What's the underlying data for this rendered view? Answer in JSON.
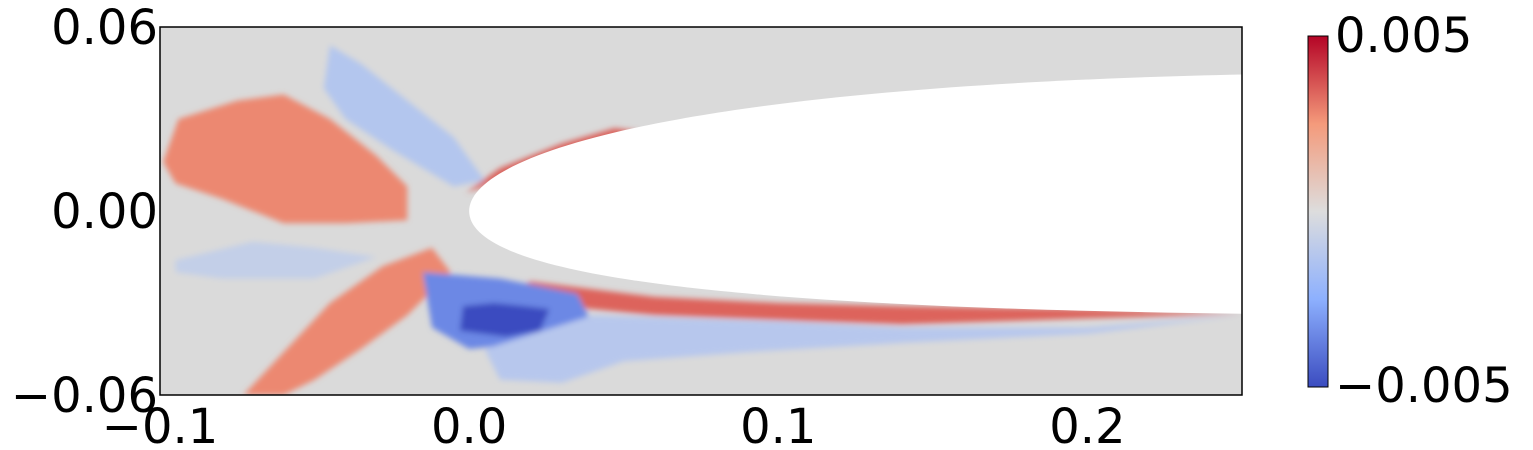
{
  "chart_data": {
    "type": "heatmap",
    "title": "",
    "xlabel": "",
    "ylabel": "",
    "xlim": [
      -0.1,
      0.25
    ],
    "ylim": [
      -0.06,
      0.06
    ],
    "xticks": [
      -0.1,
      0.0,
      0.1,
      0.2
    ],
    "xtick_labels": [
      "−0.1",
      "0.0",
      "0.1",
      "0.2"
    ],
    "yticks": [
      -0.06,
      0.0,
      0.06
    ],
    "ytick_labels": [
      "−0.06",
      "0.00",
      "0.06"
    ],
    "grid": false,
    "colormap": "coolwarm",
    "colorbar": {
      "range": [
        -0.005,
        0.005
      ],
      "tick_labels": [
        "0.005",
        "−0.005"
      ],
      "colors": [
        "#3b4cc0",
        "#8db0fe",
        "#dddddd",
        "#f49a7b",
        "#b40426"
      ]
    },
    "background_color": "#dadada",
    "airfoil": {
      "leading_edge": [
        0.0,
        0.0
      ],
      "trailing_edge_x": 0.25,
      "upper_y_at_trailing_edge": 0.0445,
      "lower_y_at_trailing_edge": -0.0335,
      "color": "#ffffff"
    },
    "regions": [
      {
        "label": "upstream-upper-lobe",
        "value": 0.0028,
        "points": [
          [
            -0.099,
            0.016
          ],
          [
            -0.094,
            0.03
          ],
          [
            -0.075,
            0.036
          ],
          [
            -0.06,
            0.038
          ],
          [
            -0.045,
            0.03
          ],
          [
            -0.03,
            0.018
          ],
          [
            -0.02,
            0.008
          ],
          [
            -0.02,
            -0.003
          ],
          [
            -0.04,
            -0.004
          ],
          [
            -0.06,
            -0.004
          ],
          [
            -0.08,
            0.004
          ],
          [
            -0.095,
            0.009
          ]
        ]
      },
      {
        "label": "upstream-lower-lobe",
        "value": 0.0028,
        "points": [
          [
            -0.073,
            -0.06
          ],
          [
            -0.06,
            -0.046
          ],
          [
            -0.045,
            -0.03
          ],
          [
            -0.028,
            -0.018
          ],
          [
            -0.012,
            -0.012
          ],
          [
            -0.006,
            -0.02
          ],
          [
            -0.02,
            -0.034
          ],
          [
            -0.035,
            -0.045
          ],
          [
            -0.05,
            -0.055
          ],
          [
            -0.06,
            -0.06
          ]
        ]
      },
      {
        "label": "upstream-light-blue-upper",
        "value": -0.0013,
        "points": [
          [
            -0.045,
            0.054
          ],
          [
            -0.035,
            0.048
          ],
          [
            -0.02,
            0.036
          ],
          [
            -0.005,
            0.024
          ],
          [
            0.005,
            0.01
          ],
          [
            -0.005,
            0.008
          ],
          [
            -0.025,
            0.02
          ],
          [
            -0.04,
            0.03
          ],
          [
            -0.047,
            0.04
          ]
        ]
      },
      {
        "label": "upstream-light-blue-lower",
        "value": -0.0008,
        "points": [
          [
            -0.095,
            -0.016
          ],
          [
            -0.07,
            -0.01
          ],
          [
            -0.05,
            -0.012
          ],
          [
            -0.03,
            -0.015
          ],
          [
            -0.05,
            -0.022
          ],
          [
            -0.08,
            -0.022
          ],
          [
            -0.095,
            -0.02
          ]
        ]
      },
      {
        "label": "upper-surface-shear",
        "value": 0.0035,
        "points": [
          [
            -0.001,
            0.006
          ],
          [
            0.01,
            0.014
          ],
          [
            0.03,
            0.022
          ],
          [
            0.047,
            0.027
          ],
          [
            0.055,
            0.026
          ],
          [
            0.04,
            0.022
          ],
          [
            0.02,
            0.015
          ],
          [
            0.005,
            0.008
          ]
        ]
      },
      {
        "label": "lower-surface-shear",
        "value": 0.0034,
        "points": [
          [
            0.02,
            -0.023
          ],
          [
            0.06,
            -0.028
          ],
          [
            0.1,
            -0.03
          ],
          [
            0.14,
            -0.031
          ],
          [
            0.2,
            -0.032
          ],
          [
            0.25,
            -0.0335
          ],
          [
            0.2,
            -0.035
          ],
          [
            0.14,
            -0.037
          ],
          [
            0.11,
            -0.036
          ],
          [
            0.06,
            -0.034
          ],
          [
            0.03,
            -0.031
          ],
          [
            0.01,
            -0.027
          ]
        ]
      },
      {
        "label": "lower-blue-patch",
        "value": -0.0035,
        "points": [
          [
            -0.015,
            -0.02
          ],
          [
            0.01,
            -0.022
          ],
          [
            0.035,
            -0.027
          ],
          [
            0.04,
            -0.037
          ],
          [
            0.02,
            -0.043
          ],
          [
            0.0,
            -0.045
          ],
          [
            -0.012,
            -0.038
          ]
        ]
      },
      {
        "label": "lower-dark-blue-core",
        "value": -0.0052,
        "points": [
          [
            -0.002,
            -0.031
          ],
          [
            0.008,
            -0.03
          ],
          [
            0.018,
            -0.031
          ],
          [
            0.026,
            -0.032
          ],
          [
            0.023,
            -0.039
          ],
          [
            0.012,
            -0.041
          ],
          [
            -0.003,
            -0.039
          ]
        ]
      },
      {
        "label": "wake-light-blue",
        "value": -0.0012,
        "points": [
          [
            0.04,
            -0.034
          ],
          [
            0.1,
            -0.036
          ],
          [
            0.14,
            -0.038
          ],
          [
            0.2,
            -0.038
          ],
          [
            0.25,
            -0.034
          ],
          [
            0.2,
            -0.04
          ],
          [
            0.14,
            -0.043
          ],
          [
            0.09,
            -0.046
          ],
          [
            0.05,
            -0.049
          ],
          [
            0.03,
            -0.056
          ],
          [
            0.01,
            -0.055
          ],
          [
            0.005,
            -0.045
          ]
        ]
      }
    ]
  }
}
